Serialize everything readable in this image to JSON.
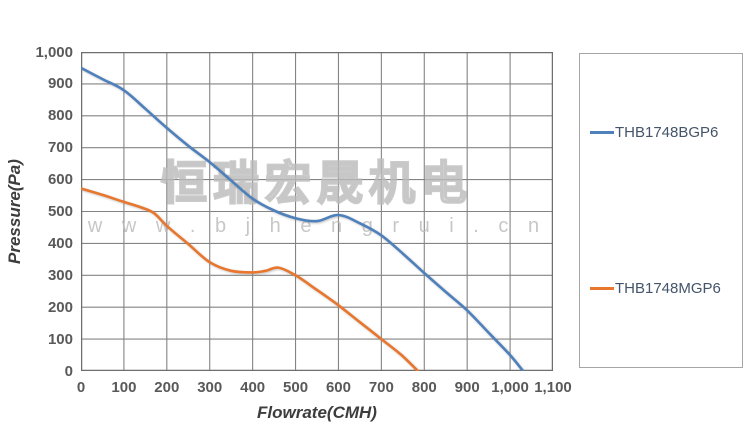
{
  "watermark": {
    "line1": "恒瑞宏晟机电",
    "line2": "w w w . b j h e n g r u i . c n"
  },
  "colors": {
    "series_blue": "#4e80bc",
    "series_orange": "#e8762c",
    "gridline": "#848484",
    "plot_border": "#6e6e6e",
    "tick_text": "#595959",
    "legend_text": "#44546a",
    "legend_border": "#a6a6a6"
  },
  "chart_data": {
    "type": "line",
    "title": "",
    "xlabel": "Flowrate(CMH)",
    "ylabel": "Pressure(Pa)",
    "xlim": [
      0,
      1100
    ],
    "ylim": [
      0,
      1000
    ],
    "grid": true,
    "legend_position": "right",
    "x_ticks": [
      "0",
      "100",
      "200",
      "300",
      "400",
      "500",
      "600",
      "700",
      "800",
      "900",
      "1,000",
      "1,100"
    ],
    "y_ticks": [
      "0",
      "100",
      "200",
      "300",
      "400",
      "500",
      "600",
      "700",
      "800",
      "900",
      "1,000"
    ],
    "series": [
      {
        "name": "THB1748BGP6",
        "color": "#4e80bc",
        "points": [
          [
            0,
            950
          ],
          [
            50,
            915
          ],
          [
            100,
            880
          ],
          [
            150,
            822
          ],
          [
            200,
            762
          ],
          [
            250,
            706
          ],
          [
            300,
            655
          ],
          [
            350,
            597
          ],
          [
            400,
            540
          ],
          [
            450,
            503
          ],
          [
            500,
            479
          ],
          [
            550,
            470
          ],
          [
            600,
            489
          ],
          [
            650,
            463
          ],
          [
            700,
            425
          ],
          [
            750,
            368
          ],
          [
            800,
            307
          ],
          [
            850,
            248
          ],
          [
            900,
            190
          ],
          [
            950,
            120
          ],
          [
            1000,
            50
          ],
          [
            1030,
            0
          ]
        ]
      },
      {
        "name": "THB1748MGP6",
        "color": "#e8762c",
        "points": [
          [
            0,
            572
          ],
          [
            50,
            552
          ],
          [
            100,
            530
          ],
          [
            140,
            513
          ],
          [
            170,
            495
          ],
          [
            200,
            455
          ],
          [
            250,
            398
          ],
          [
            300,
            341
          ],
          [
            350,
            314
          ],
          [
            400,
            309
          ],
          [
            430,
            314
          ],
          [
            460,
            324
          ],
          [
            500,
            300
          ],
          [
            550,
            254
          ],
          [
            600,
            206
          ],
          [
            650,
            153
          ],
          [
            700,
            100
          ],
          [
            745,
            52
          ],
          [
            785,
            0
          ]
        ]
      }
    ]
  }
}
